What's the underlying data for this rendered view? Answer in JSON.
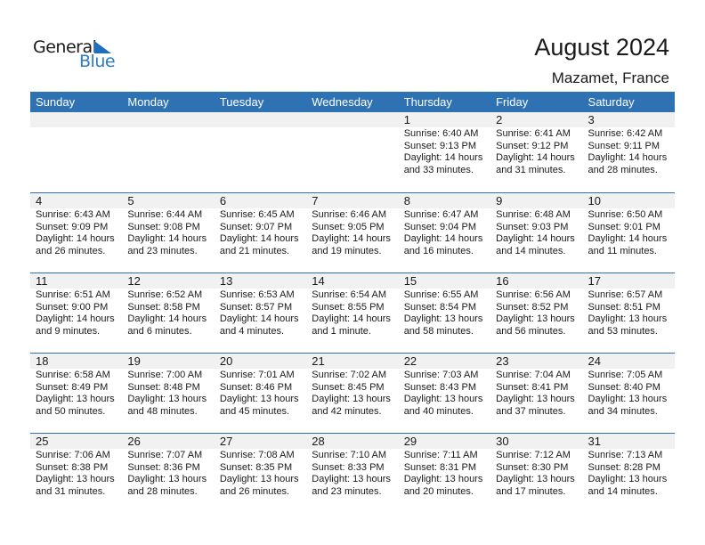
{
  "logo": {
    "line1": "General",
    "line2": "Blue"
  },
  "title": "August 2024",
  "location": "Mazamet, France",
  "weekdays": [
    "Sunday",
    "Monday",
    "Tuesday",
    "Wednesday",
    "Thursday",
    "Friday",
    "Saturday"
  ],
  "weeks": [
    [
      null,
      null,
      null,
      null,
      {
        "day": "1",
        "sunrise": "Sunrise: 6:40 AM",
        "sunset": "Sunset: 9:13 PM",
        "daylight1": "Daylight: 14 hours",
        "daylight2": "and 33 minutes."
      },
      {
        "day": "2",
        "sunrise": "Sunrise: 6:41 AM",
        "sunset": "Sunset: 9:12 PM",
        "daylight1": "Daylight: 14 hours",
        "daylight2": "and 31 minutes."
      },
      {
        "day": "3",
        "sunrise": "Sunrise: 6:42 AM",
        "sunset": "Sunset: 9:11 PM",
        "daylight1": "Daylight: 14 hours",
        "daylight2": "and 28 minutes."
      }
    ],
    [
      {
        "day": "4",
        "sunrise": "Sunrise: 6:43 AM",
        "sunset": "Sunset: 9:09 PM",
        "daylight1": "Daylight: 14 hours",
        "daylight2": "and 26 minutes."
      },
      {
        "day": "5",
        "sunrise": "Sunrise: 6:44 AM",
        "sunset": "Sunset: 9:08 PM",
        "daylight1": "Daylight: 14 hours",
        "daylight2": "and 23 minutes."
      },
      {
        "day": "6",
        "sunrise": "Sunrise: 6:45 AM",
        "sunset": "Sunset: 9:07 PM",
        "daylight1": "Daylight: 14 hours",
        "daylight2": "and 21 minutes."
      },
      {
        "day": "7",
        "sunrise": "Sunrise: 6:46 AM",
        "sunset": "Sunset: 9:05 PM",
        "daylight1": "Daylight: 14 hours",
        "daylight2": "and 19 minutes."
      },
      {
        "day": "8",
        "sunrise": "Sunrise: 6:47 AM",
        "sunset": "Sunset: 9:04 PM",
        "daylight1": "Daylight: 14 hours",
        "daylight2": "and 16 minutes."
      },
      {
        "day": "9",
        "sunrise": "Sunrise: 6:48 AM",
        "sunset": "Sunset: 9:03 PM",
        "daylight1": "Daylight: 14 hours",
        "daylight2": "and 14 minutes."
      },
      {
        "day": "10",
        "sunrise": "Sunrise: 6:50 AM",
        "sunset": "Sunset: 9:01 PM",
        "daylight1": "Daylight: 14 hours",
        "daylight2": "and 11 minutes."
      }
    ],
    [
      {
        "day": "11",
        "sunrise": "Sunrise: 6:51 AM",
        "sunset": "Sunset: 9:00 PM",
        "daylight1": "Daylight: 14 hours",
        "daylight2": "and 9 minutes."
      },
      {
        "day": "12",
        "sunrise": "Sunrise: 6:52 AM",
        "sunset": "Sunset: 8:58 PM",
        "daylight1": "Daylight: 14 hours",
        "daylight2": "and 6 minutes."
      },
      {
        "day": "13",
        "sunrise": "Sunrise: 6:53 AM",
        "sunset": "Sunset: 8:57 PM",
        "daylight1": "Daylight: 14 hours",
        "daylight2": "and 4 minutes."
      },
      {
        "day": "14",
        "sunrise": "Sunrise: 6:54 AM",
        "sunset": "Sunset: 8:55 PM",
        "daylight1": "Daylight: 14 hours",
        "daylight2": "and 1 minute."
      },
      {
        "day": "15",
        "sunrise": "Sunrise: 6:55 AM",
        "sunset": "Sunset: 8:54 PM",
        "daylight1": "Daylight: 13 hours",
        "daylight2": "and 58 minutes."
      },
      {
        "day": "16",
        "sunrise": "Sunrise: 6:56 AM",
        "sunset": "Sunset: 8:52 PM",
        "daylight1": "Daylight: 13 hours",
        "daylight2": "and 56 minutes."
      },
      {
        "day": "17",
        "sunrise": "Sunrise: 6:57 AM",
        "sunset": "Sunset: 8:51 PM",
        "daylight1": "Daylight: 13 hours",
        "daylight2": "and 53 minutes."
      }
    ],
    [
      {
        "day": "18",
        "sunrise": "Sunrise: 6:58 AM",
        "sunset": "Sunset: 8:49 PM",
        "daylight1": "Daylight: 13 hours",
        "daylight2": "and 50 minutes."
      },
      {
        "day": "19",
        "sunrise": "Sunrise: 7:00 AM",
        "sunset": "Sunset: 8:48 PM",
        "daylight1": "Daylight: 13 hours",
        "daylight2": "and 48 minutes."
      },
      {
        "day": "20",
        "sunrise": "Sunrise: 7:01 AM",
        "sunset": "Sunset: 8:46 PM",
        "daylight1": "Daylight: 13 hours",
        "daylight2": "and 45 minutes."
      },
      {
        "day": "21",
        "sunrise": "Sunrise: 7:02 AM",
        "sunset": "Sunset: 8:45 PM",
        "daylight1": "Daylight: 13 hours",
        "daylight2": "and 42 minutes."
      },
      {
        "day": "22",
        "sunrise": "Sunrise: 7:03 AM",
        "sunset": "Sunset: 8:43 PM",
        "daylight1": "Daylight: 13 hours",
        "daylight2": "and 40 minutes."
      },
      {
        "day": "23",
        "sunrise": "Sunrise: 7:04 AM",
        "sunset": "Sunset: 8:41 PM",
        "daylight1": "Daylight: 13 hours",
        "daylight2": "and 37 minutes."
      },
      {
        "day": "24",
        "sunrise": "Sunrise: 7:05 AM",
        "sunset": "Sunset: 8:40 PM",
        "daylight1": "Daylight: 13 hours",
        "daylight2": "and 34 minutes."
      }
    ],
    [
      {
        "day": "25",
        "sunrise": "Sunrise: 7:06 AM",
        "sunset": "Sunset: 8:38 PM",
        "daylight1": "Daylight: 13 hours",
        "daylight2": "and 31 minutes."
      },
      {
        "day": "26",
        "sunrise": "Sunrise: 7:07 AM",
        "sunset": "Sunset: 8:36 PM",
        "daylight1": "Daylight: 13 hours",
        "daylight2": "and 28 minutes."
      },
      {
        "day": "27",
        "sunrise": "Sunrise: 7:08 AM",
        "sunset": "Sunset: 8:35 PM",
        "daylight1": "Daylight: 13 hours",
        "daylight2": "and 26 minutes."
      },
      {
        "day": "28",
        "sunrise": "Sunrise: 7:10 AM",
        "sunset": "Sunset: 8:33 PM",
        "daylight1": "Daylight: 13 hours",
        "daylight2": "and 23 minutes."
      },
      {
        "day": "29",
        "sunrise": "Sunrise: 7:11 AM",
        "sunset": "Sunset: 8:31 PM",
        "daylight1": "Daylight: 13 hours",
        "daylight2": "and 20 minutes."
      },
      {
        "day": "30",
        "sunrise": "Sunrise: 7:12 AM",
        "sunset": "Sunset: 8:30 PM",
        "daylight1": "Daylight: 13 hours",
        "daylight2": "and 17 minutes."
      },
      {
        "day": "31",
        "sunrise": "Sunrise: 7:13 AM",
        "sunset": "Sunset: 8:28 PM",
        "daylight1": "Daylight: 13 hours",
        "daylight2": "and 14 minutes."
      }
    ]
  ]
}
